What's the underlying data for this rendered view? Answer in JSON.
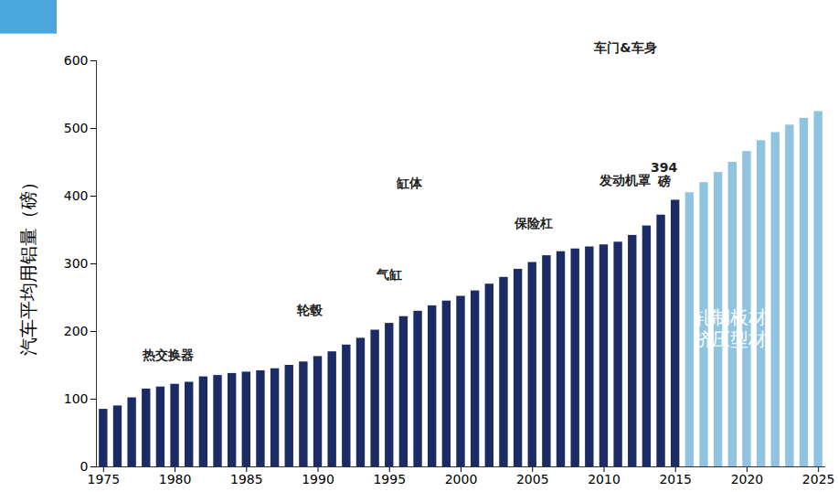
{
  "chart_data": {
    "type": "bar",
    "y_label": "汽车平均用铝量（磅）",
    "x": [
      1975,
      1976,
      1977,
      1978,
      1979,
      1980,
      1981,
      1982,
      1983,
      1984,
      1985,
      1986,
      1987,
      1988,
      1989,
      1990,
      1991,
      1992,
      1993,
      1994,
      1995,
      1996,
      1997,
      1998,
      1999,
      2000,
      2001,
      2002,
      2003,
      2004,
      2005,
      2006,
      2007,
      2008,
      2009,
      2010,
      2011,
      2012,
      2013,
      2014,
      2015,
      2016,
      2017,
      2018,
      2019,
      2020,
      2021,
      2022,
      2023,
      2024,
      2025
    ],
    "values": [
      85,
      90,
      102,
      115,
      118,
      122,
      125,
      133,
      135,
      138,
      140,
      142,
      145,
      150,
      155,
      163,
      170,
      180,
      190,
      202,
      212,
      222,
      230,
      238,
      245,
      252,
      260,
      270,
      280,
      292,
      302,
      312,
      318,
      322,
      325,
      328,
      332,
      342,
      356,
      372,
      394,
      405,
      420,
      435,
      450,
      466,
      482,
      494,
      505,
      515,
      525
    ],
    "colors": [
      "#1b2b63",
      "#1b2b63",
      "#1b2b63",
      "#1b2b63",
      "#1b2b63",
      "#1b2b63",
      "#1b2b63",
      "#1b2b63",
      "#1b2b63",
      "#1b2b63",
      "#1b2b63",
      "#1b2b63",
      "#1b2b63",
      "#1b2b63",
      "#1b2b63",
      "#1b2b63",
      "#1b2b63",
      "#1b2b63",
      "#1b2b63",
      "#1b2b63",
      "#1b2b63",
      "#1b2b63",
      "#1b2b63",
      "#1b2b63",
      "#1b2b63",
      "#1b2b63",
      "#1b2b63",
      "#1b2b63",
      "#1b2b63",
      "#1b2b63",
      "#1b2b63",
      "#1b2b63",
      "#1b2b63",
      "#1b2b63",
      "#1b2b63",
      "#1b2b63",
      "#1b2b63",
      "#1b2b63",
      "#1b2b63",
      "#1b2b63",
      "#1b2b63",
      "#8ec4df",
      "#8ec4df",
      "#8ec4df",
      "#8ec4df",
      "#8ec4df",
      "#8ec4df",
      "#8ec4df",
      "#8ec4df",
      "#8ec4df",
      "#8ec4df"
    ],
    "xlim": [
      1974.5,
      2025.5
    ],
    "xticks": [
      1975,
      1980,
      1985,
      1990,
      1995,
      2000,
      2005,
      2010,
      2015,
      2020,
      2025
    ],
    "ylim": [
      0,
      600
    ],
    "yticks": [
      0,
      100,
      200,
      300,
      400,
      500,
      600
    ],
    "grid": false,
    "annotations": [
      {
        "text": "热交换器",
        "x": 1979.5,
        "y": 165
      },
      {
        "text": "轮毂",
        "x": 1989.4,
        "y": 231
      },
      {
        "text": "气缸",
        "x": 1995,
        "y": 285
      },
      {
        "text": "缸体",
        "x": 1996.4,
        "y": 420
      },
      {
        "text": "保险杠",
        "x": 2005.1,
        "y": 360
      },
      {
        "text": "发动机罩",
        "x": 2011.5,
        "y": 424
      },
      {
        "text": "394\n磅",
        "x": 2014.2,
        "y": 432
      },
      {
        "text": "车门&车身",
        "x": 2011.5,
        "y": 620
      }
    ],
    "inset_label": {
      "text": "轧制板材\n挤压型材",
      "x": 2018.8,
      "y": 205
    }
  }
}
